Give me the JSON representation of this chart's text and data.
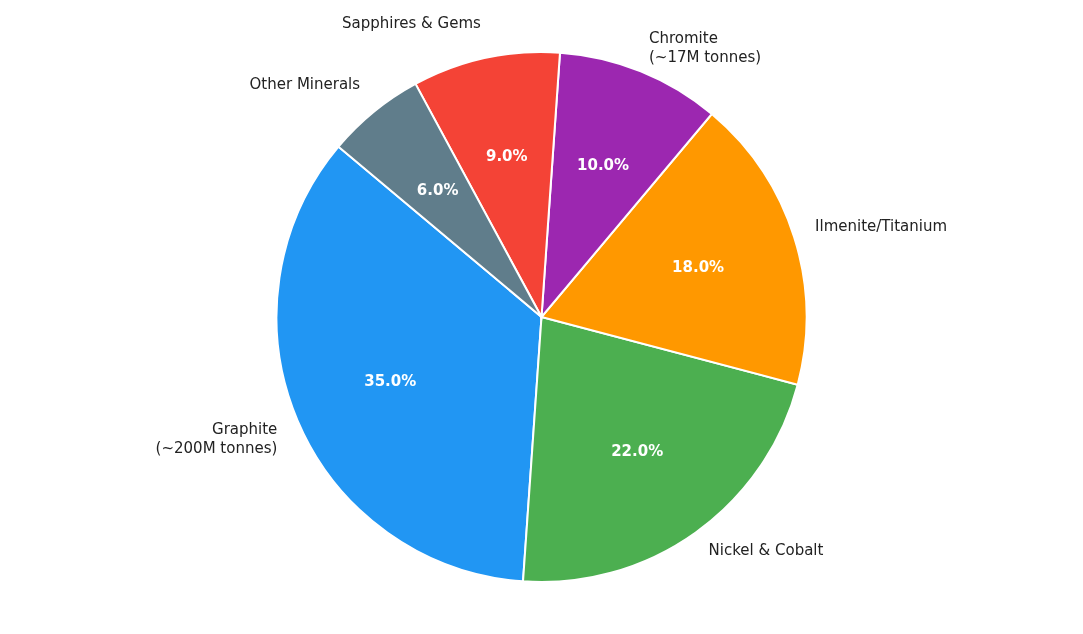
{
  "chart_data": {
    "type": "pie",
    "categories": [
      "Graphite\n(~200M tonnes)",
      "Nickel & Cobalt",
      "Ilmenite/Titanium",
      "Chromite\n(~17M tonnes)",
      "Sapphires & Gems",
      "Other Minerals"
    ],
    "values": [
      35,
      22,
      18,
      10,
      9,
      6
    ],
    "value_labels": [
      "35.0%",
      "22.0%",
      "18.0%",
      "10.0%",
      "9.0%",
      "6.0%"
    ],
    "colors": [
      "#2196f3",
      "#4caf50",
      "#ff9800",
      "#9c27b0",
      "#f44336",
      "#607d8b"
    ],
    "legend": false
  }
}
